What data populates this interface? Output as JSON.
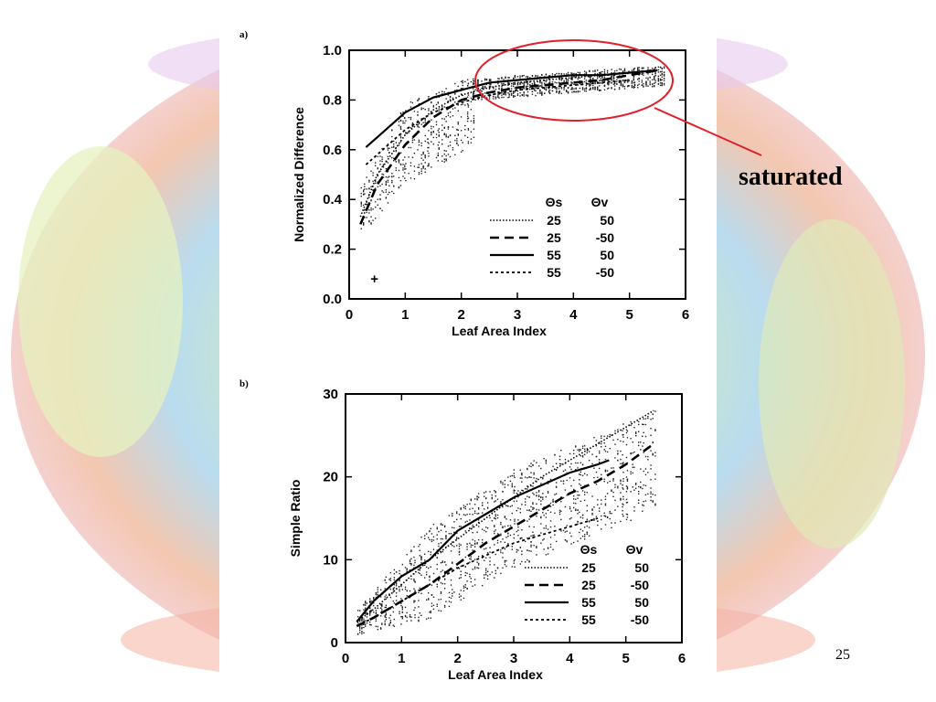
{
  "slide": {
    "annotation_label": "saturated",
    "page_number": "25",
    "annotation_color": "#e0202a"
  },
  "chart_data": [
    {
      "panel_label": "a)",
      "type": "line",
      "xlabel": "Leaf Area Index",
      "ylabel": "Normalized Difference",
      "xlim": [
        0,
        6
      ],
      "ylim": [
        0.0,
        1.0
      ],
      "x_ticks": [
        "0",
        "1",
        "2",
        "3",
        "4",
        "5",
        "6"
      ],
      "y_ticks": [
        "0.0",
        "0.2",
        "0.4",
        "0.6",
        "0.8",
        "1.0"
      ],
      "grid": false,
      "legend_position": "bottom-right",
      "legend_header": [
        "Θs",
        "Θv"
      ],
      "series": [
        {
          "theta_s": "25",
          "theta_v": "50",
          "style": "dotted",
          "x": [
            0.2,
            0.5,
            1.0,
            1.5,
            2.0,
            2.5,
            3.0,
            3.5,
            4.0,
            4.5,
            5.0,
            5.5
          ],
          "y": [
            0.33,
            0.5,
            0.66,
            0.76,
            0.82,
            0.85,
            0.87,
            0.88,
            0.89,
            0.9,
            0.91,
            0.92
          ]
        },
        {
          "theta_s": "25",
          "theta_v": "-50",
          "style": "dashed",
          "x": [
            0.2,
            0.5,
            1.0,
            1.5,
            2.0,
            2.5,
            3.0,
            3.5,
            4.0,
            4.5,
            5.0,
            5.5
          ],
          "y": [
            0.3,
            0.46,
            0.62,
            0.73,
            0.8,
            0.83,
            0.85,
            0.86,
            0.87,
            0.88,
            0.9,
            0.92
          ]
        },
        {
          "theta_s": "55",
          "theta_v": "50",
          "style": "solid",
          "x": [
            0.3,
            0.6,
            1.0,
            1.5,
            2.0,
            2.5,
            3.0,
            3.5,
            4.0,
            4.5,
            5.0,
            5.5
          ],
          "y": [
            0.61,
            0.67,
            0.75,
            0.81,
            0.84,
            0.87,
            0.88,
            0.89,
            0.9,
            0.9,
            0.91,
            0.92
          ]
        },
        {
          "theta_s": "55",
          "theta_v": "-50",
          "style": "short-dash",
          "x": [
            0.3,
            0.6,
            1.0,
            1.5,
            2.0,
            2.5,
            3.0,
            3.5,
            4.0,
            4.5,
            5.0
          ],
          "y": [
            0.54,
            0.6,
            0.68,
            0.75,
            0.79,
            0.82,
            0.84,
            0.85,
            0.86,
            0.87,
            0.88
          ]
        }
      ],
      "scatter_bands": [
        {
          "x_from": 0.2,
          "x_to": 0.9,
          "y_min": [
            0.25,
            0.45
          ],
          "y_max": [
            0.45,
            0.75
          ]
        },
        {
          "x_from": 0.9,
          "x_to": 2.2,
          "y_min": [
            0.45,
            0.62
          ],
          "y_max": [
            0.78,
            0.9
          ]
        },
        {
          "x_from": 2.2,
          "x_to": 5.6,
          "y_min": [
            0.8,
            0.86
          ],
          "y_max": [
            0.89,
            0.94
          ]
        }
      ],
      "marker": {
        "symbol": "+",
        "x": 0.45,
        "y": 0.08
      }
    },
    {
      "panel_label": "b)",
      "type": "line",
      "xlabel": "Leaf Area Index",
      "ylabel": "Simple Ratio",
      "xlim": [
        0,
        6
      ],
      "ylim": [
        0,
        30
      ],
      "x_ticks": [
        "0",
        "1",
        "2",
        "3",
        "4",
        "5",
        "6"
      ],
      "y_ticks": [
        "0",
        "10",
        "20",
        "30"
      ],
      "grid": false,
      "legend_position": "bottom-right",
      "legend_header": [
        "Θs",
        "Θv"
      ],
      "series": [
        {
          "theta_s": "25",
          "theta_v": "50",
          "style": "dotted",
          "x": [
            0.2,
            0.5,
            1.0,
            1.5,
            2.0,
            2.5,
            3.0,
            3.5,
            4.0,
            4.5,
            5.0,
            5.5
          ],
          "y": [
            2.5,
            4,
            7,
            10,
            12.5,
            15,
            17.5,
            20,
            22,
            24,
            26,
            28
          ]
        },
        {
          "theta_s": "25",
          "theta_v": "-50",
          "style": "dashed",
          "x": [
            0.2,
            0.5,
            1.0,
            1.5,
            2.0,
            2.5,
            3.0,
            3.5,
            4.0,
            4.5,
            5.0,
            5.5
          ],
          "y": [
            2,
            3,
            5,
            7,
            9.5,
            12,
            14,
            16,
            18,
            19.5,
            21.5,
            24
          ]
        },
        {
          "theta_s": "55",
          "theta_v": "50",
          "style": "solid",
          "x": [
            0.2,
            0.5,
            1.0,
            1.5,
            2.0,
            2.5,
            3.0,
            3.5,
            4.0,
            4.5,
            4.7
          ],
          "y": [
            2.5,
            5,
            8,
            10,
            13.5,
            15.5,
            17.5,
            19,
            20.5,
            21.5,
            22
          ]
        },
        {
          "theta_s": "55",
          "theta_v": "-50",
          "style": "short-dash",
          "x": [
            0.2,
            0.5,
            1.0,
            1.5,
            2.0,
            2.5,
            3.0,
            3.5,
            4.0,
            4.5
          ],
          "y": [
            2,
            3,
            5,
            7,
            9,
            10.5,
            12,
            13,
            14,
            15
          ]
        }
      ],
      "scatter_bands": [
        {
          "x_from": 0.2,
          "x_to": 1.5,
          "y_min": [
            1,
            3
          ],
          "y_max": [
            4,
            14
          ]
        },
        {
          "x_from": 1.5,
          "x_to": 3.0,
          "y_min": [
            3,
            9
          ],
          "y_max": [
            14,
            21
          ]
        },
        {
          "x_from": 3.0,
          "x_to": 5.5,
          "y_min": [
            9,
            16
          ],
          "y_max": [
            21,
            28
          ]
        }
      ]
    }
  ]
}
